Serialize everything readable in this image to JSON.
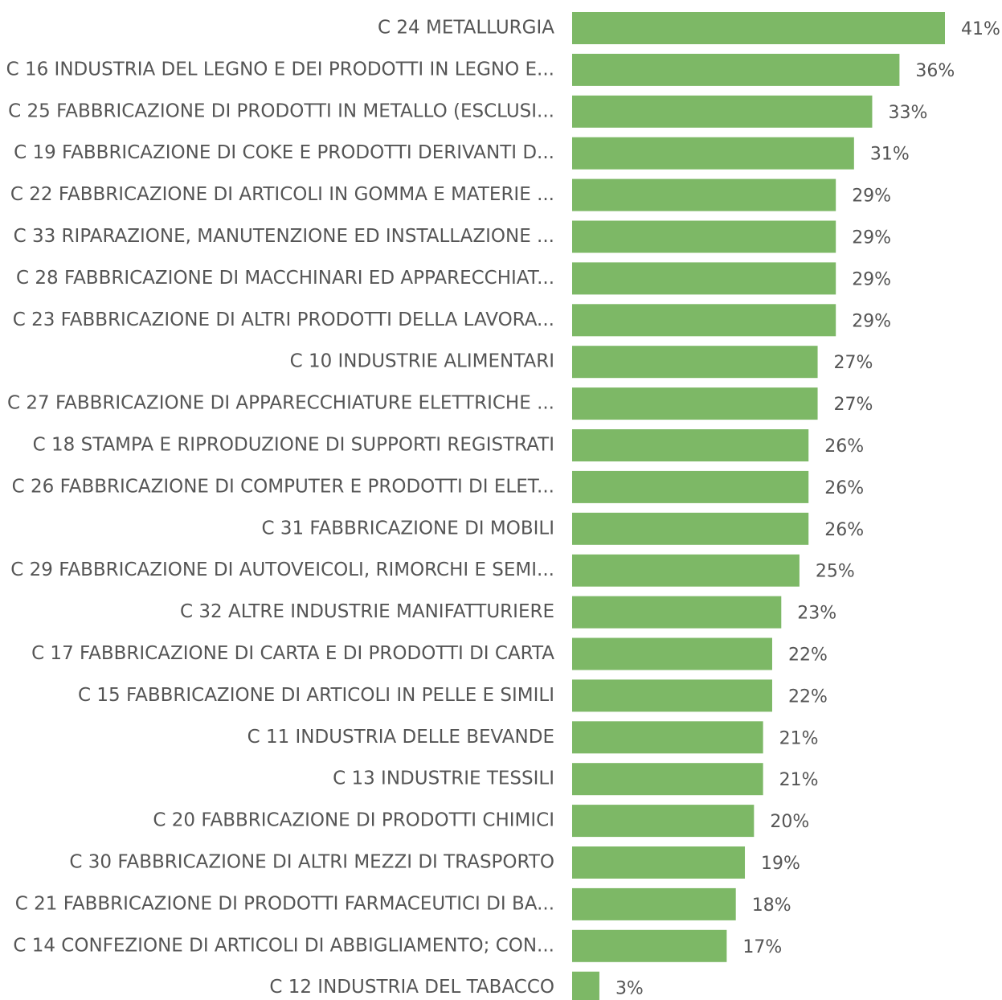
{
  "chart_data": {
    "type": "bar",
    "orientation": "horizontal",
    "color": "#7db866",
    "categories": [
      "C 24 METALLURGIA",
      "C 16 INDUSTRIA DEL LEGNO E DEI PRODOTTI IN LEGNO E...",
      "C 25 FABBRICAZIONE DI PRODOTTI IN METALLO (ESCLUSI...",
      "C 19 FABBRICAZIONE DI COKE E PRODOTTI DERIVANTI D...",
      "C 22 FABBRICAZIONE DI ARTICOLI IN GOMMA E MATERIE ...",
      "C 33 RIPARAZIONE, MANUTENZIONE ED INSTALLAZIONE ...",
      "C 28 FABBRICAZIONE DI MACCHINARI ED APPARECCHIAT...",
      "C 23 FABBRICAZIONE DI ALTRI PRODOTTI DELLA LAVORA...",
      "C 10 INDUSTRIE ALIMENTARI",
      "C 27 FABBRICAZIONE DI APPARECCHIATURE ELETTRICHE ...",
      "C 18 STAMPA E RIPRODUZIONE DI SUPPORTI REGISTRATI",
      "C 26 FABBRICAZIONE DI COMPUTER E PRODOTTI DI ELET...",
      "C 31 FABBRICAZIONE DI MOBILI",
      "C 29 FABBRICAZIONE DI AUTOVEICOLI, RIMORCHI E SEMI...",
      "C 32 ALTRE INDUSTRIE MANIFATTURIERE",
      "C 17 FABBRICAZIONE DI CARTA E DI PRODOTTI DI CARTA",
      "C 15 FABBRICAZIONE DI ARTICOLI IN PELLE E SIMILI",
      "C 11 INDUSTRIA DELLE BEVANDE",
      "C 13 INDUSTRIE TESSILI",
      "C 20 FABBRICAZIONE DI PRODOTTI CHIMICI",
      "C 30 FABBRICAZIONE DI ALTRI MEZZI DI TRASPORTO",
      "C 21 FABBRICAZIONE DI PRODOTTI FARMACEUTICI DI BA...",
      "C 14 CONFEZIONE DI ARTICOLI DI ABBIGLIAMENTO; CON...",
      "C 12 INDUSTRIA DEL TABACCO"
    ],
    "values": [
      41,
      36,
      33,
      31,
      29,
      29,
      29,
      29,
      27,
      27,
      26,
      26,
      26,
      25,
      23,
      22,
      22,
      21,
      21,
      20,
      19,
      18,
      17,
      3
    ],
    "value_labels": [
      "41%",
      "36%",
      "33%",
      "31%",
      "29%",
      "29%",
      "29%",
      "29%",
      "27%",
      "27%",
      "26%",
      "26%",
      "26%",
      "25%",
      "23%",
      "22%",
      "22%",
      "21%",
      "21%",
      "20%",
      "19%",
      "18%",
      "17%",
      "3%"
    ]
  }
}
